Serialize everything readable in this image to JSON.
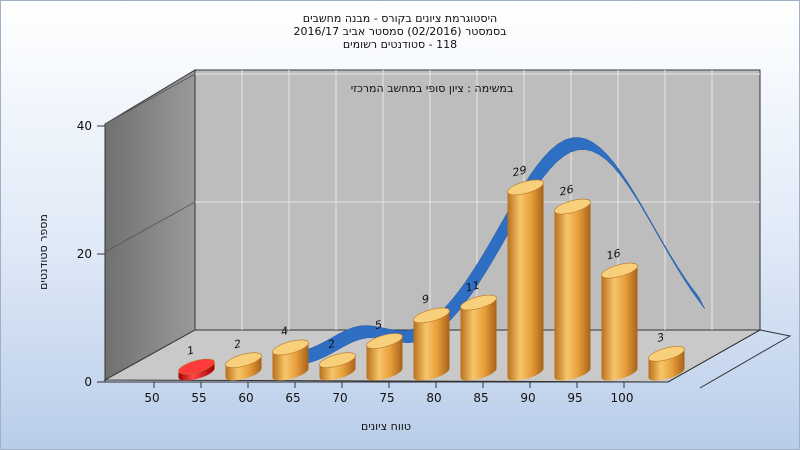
{
  "chart_data": {
    "type": "bar",
    "title_lines": [
      "היסטוגרמת ציונים בקורס - מבנה מחשבים",
      "בסמסטר  (02/2016)  סמסטר אביב 2016/17",
      "118 - סטודנטים רשומים"
    ],
    "annotation": "במשימה : ציון סופי במחשב המרכזי",
    "xlabel": "טווח ציונים",
    "ylabel": "מספר סטודנטים",
    "x_ticks": [
      "50",
      "55",
      "60",
      "65",
      "70",
      "75",
      "80",
      "85",
      "90",
      "95",
      "100"
    ],
    "y_ticks": [
      "0",
      "20",
      "40"
    ],
    "ylim": [
      0,
      40
    ],
    "values": [
      1,
      2,
      4,
      2,
      5,
      9,
      11,
      29,
      26,
      16,
      3
    ],
    "bar_colors": [
      "#e01010",
      "#e6a13c",
      "#e6a13c",
      "#e6a13c",
      "#e6a13c",
      "#e6a13c",
      "#e6a13c",
      "#e6a13c",
      "#e6a13c",
      "#e6a13c",
      "#e6a13c"
    ],
    "curve_color": "#2e6fc4",
    "grid": true
  }
}
